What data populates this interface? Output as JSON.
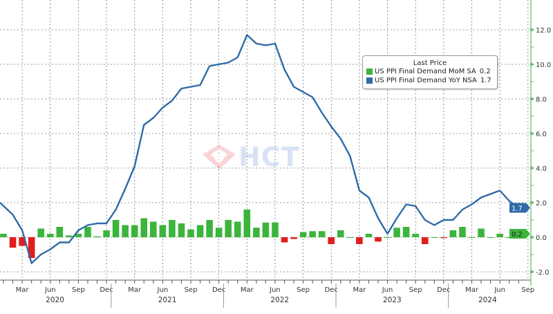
{
  "chart_data": {
    "type": "bar+line",
    "legend": {
      "title": "Last Price",
      "placement": "top-right",
      "entries": [
        {
          "name": "US PPI Final Demand MoM SA",
          "last": "0.2",
          "color": "#3cb43c"
        },
        {
          "name": "US PPI Final Demand YoY NSA",
          "last": "1.7",
          "color": "#2f6aa8"
        }
      ]
    },
    "x": [
      "2020-01",
      "2020-02",
      "2020-03",
      "2020-04",
      "2020-05",
      "2020-06",
      "2020-07",
      "2020-08",
      "2020-09",
      "2020-10",
      "2020-11",
      "2020-12",
      "2021-01",
      "2021-02",
      "2021-03",
      "2021-04",
      "2021-05",
      "2021-06",
      "2021-07",
      "2021-08",
      "2021-09",
      "2021-10",
      "2021-11",
      "2021-12",
      "2022-01",
      "2022-02",
      "2022-03",
      "2022-04",
      "2022-05",
      "2022-06",
      "2022-07",
      "2022-08",
      "2022-09",
      "2022-10",
      "2022-11",
      "2022-12",
      "2023-01",
      "2023-02",
      "2023-03",
      "2023-04",
      "2023-05",
      "2023-06",
      "2023-07",
      "2023-08",
      "2023-09",
      "2023-10",
      "2023-11",
      "2023-12",
      "2024-01",
      "2024-02",
      "2024-03",
      "2024-04",
      "2024-05",
      "2024-06",
      "2024-07",
      "2024-08"
    ],
    "series": [
      {
        "name": "US PPI Final Demand MoM SA",
        "type": "bar",
        "color_pos": "#3cb43c",
        "color_neg": "#e01e1e",
        "values": [
          0.2,
          -0.6,
          -0.5,
          -1.2,
          0.5,
          0.2,
          0.6,
          0.1,
          0.2,
          0.6,
          0.05,
          0.4,
          1.0,
          0.7,
          0.7,
          1.1,
          0.9,
          0.7,
          1.0,
          0.8,
          0.45,
          0.7,
          1.0,
          0.55,
          1.0,
          0.9,
          1.6,
          0.55,
          0.85,
          0.85,
          -0.3,
          -0.1,
          0.3,
          0.35,
          0.35,
          -0.4,
          0.4,
          0.0,
          -0.4,
          0.2,
          -0.25,
          0.0,
          0.55,
          0.6,
          0.2,
          -0.4,
          0.0,
          -0.05,
          0.4,
          0.6,
          0.0,
          0.5,
          0.0,
          0.2,
          0.0,
          0.2
        ]
      },
      {
        "name": "US PPI Final Demand YoY NSA",
        "type": "line",
        "color": "#2f6aa8",
        "values": [
          2.0,
          1.3,
          0.4,
          -1.5,
          -1.0,
          -0.7,
          -0.3,
          -0.3,
          0.4,
          0.7,
          0.8,
          0.8,
          1.6,
          2.8,
          4.1,
          6.5,
          6.9,
          7.5,
          7.9,
          8.6,
          8.7,
          8.8,
          9.9,
          10.0,
          10.1,
          10.4,
          11.7,
          11.2,
          11.1,
          11.2,
          9.7,
          8.7,
          8.4,
          8.1,
          7.2,
          6.4,
          5.7,
          4.7,
          2.7,
          2.3,
          1.1,
          0.2,
          1.1,
          1.9,
          1.8,
          1.0,
          0.7,
          1.0,
          1.0,
          1.6,
          1.9,
          2.3,
          2.5,
          2.7,
          2.1,
          1.7
        ]
      }
    ],
    "ylim": [
      -3.0,
      13.0
    ],
    "yticks": [
      "12.0",
      "10.0",
      "8.0",
      "6.0",
      "4.0",
      "2.0",
      "0.0",
      "-2.0"
    ],
    "y_axis_side": "right",
    "x_month_labels": [
      "Mar",
      "Jun",
      "Sep",
      "Dec"
    ],
    "x_year_labels": [
      "2020",
      "2021",
      "2022",
      "2023",
      "2024"
    ],
    "last_value_tags": [
      "1.7",
      "0.2"
    ],
    "grid": true
  },
  "watermark": "HCT"
}
